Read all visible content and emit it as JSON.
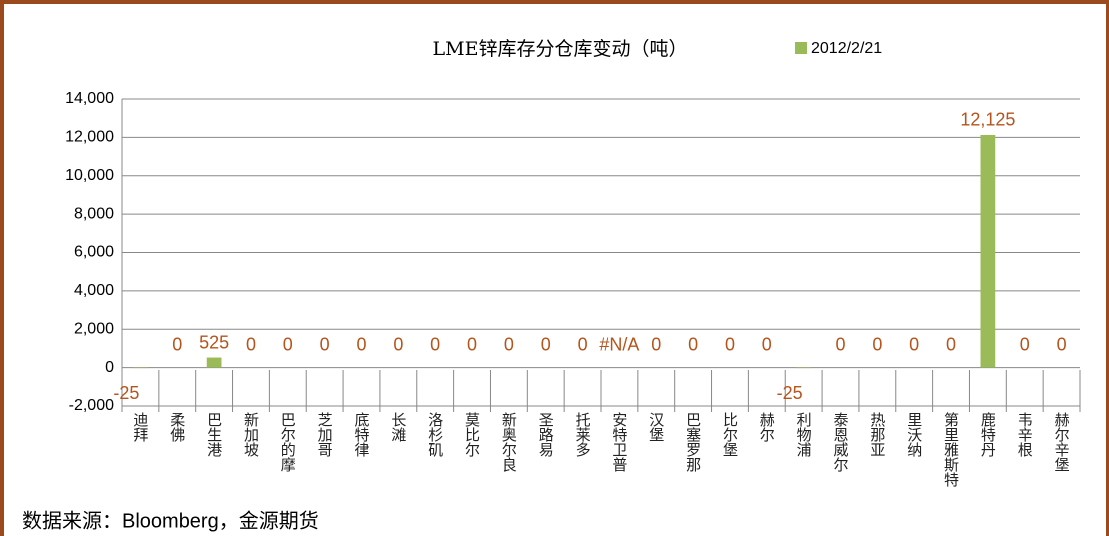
{
  "chart_data": {
    "type": "bar",
    "title": "LME锌库存分仓库变动（吨）",
    "categories": [
      "迪拜",
      "柔佛",
      "巴生港",
      "新加坡",
      "巴尔的摩",
      "芝加哥",
      "底特律",
      "长滩",
      "洛杉矶",
      "莫比尔",
      "新奥尔良",
      "圣路易",
      "托莱多",
      "安特卫普",
      "汉堡",
      "巴塞罗那",
      "比尔堡",
      "赫尔",
      "利物浦",
      "泰恩威尔",
      "热那亚",
      "里沃纳",
      "第里雅斯特",
      "鹿特丹",
      "韦辛根",
      "赫尔辛堡"
    ],
    "series": [
      {
        "name": "2012/2/21",
        "color": "#9bbb59",
        "values": [
          -25,
          0,
          525,
          0,
          0,
          0,
          0,
          0,
          0,
          0,
          0,
          0,
          0,
          null,
          0,
          0,
          0,
          0,
          -25,
          0,
          0,
          0,
          0,
          12125,
          0,
          0
        ],
        "value_labels": [
          "-25",
          "0",
          "525",
          "0",
          "0",
          "0",
          "0",
          "0",
          "0",
          "0",
          "0",
          "0",
          "0",
          "#N/A",
          "0",
          "0",
          "0",
          "0",
          "-25",
          "0",
          "0",
          "0",
          "0",
          "12,125",
          "0",
          "0"
        ]
      }
    ],
    "ylim": [
      -2000,
      14000
    ],
    "yticks": [
      {
        "value": -2000,
        "label": "-2,000"
      },
      0,
      {
        "value": 2000,
        "label": "2,000"
      },
      {
        "value": 4000,
        "label": "4,000"
      },
      {
        "value": 6000,
        "label": "6,000"
      },
      {
        "value": 8000,
        "label": "8,000"
      },
      {
        "value": 10000,
        "label": "10,000"
      },
      {
        "value": 12000,
        "label": "12,000"
      },
      {
        "value": 14000,
        "label": "14,000"
      }
    ],
    "grid": true,
    "source": "数据来源：Bloomberg，金源期货"
  }
}
